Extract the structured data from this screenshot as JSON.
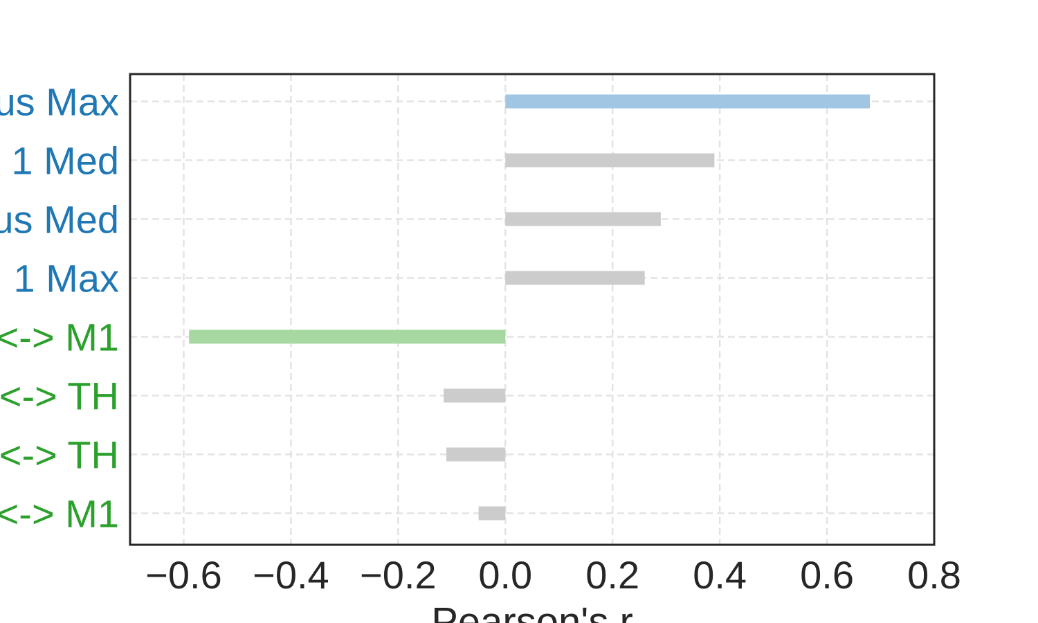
{
  "chart_data": {
    "type": "bar",
    "orientation": "horizontal",
    "title": "",
    "xlabel": "Pearson's r",
    "ylabel": "",
    "xlim": [
      -0.7,
      0.8
    ],
    "xticks": [
      -0.6,
      -0.4,
      -0.2,
      0.0,
      0.2,
      0.4,
      0.6,
      0.8
    ],
    "xtick_labels": [
      "−0.6",
      "−0.4",
      "−0.2",
      "0.0",
      "0.2",
      "0.4",
      "0.6",
      "0.8"
    ],
    "grid": true,
    "categories": [
      "us Max",
      "1 Med",
      "us Med",
      "1 Max",
      "<-> M1",
      "<-> TH",
      "<-> TH",
      "<-> M1"
    ],
    "category_colors": [
      "#1f77b4",
      "#1f77b4",
      "#1f77b4",
      "#1f77b4",
      "#2ca02c",
      "#2ca02c",
      "#2ca02c",
      "#2ca02c"
    ],
    "values": [
      0.68,
      0.39,
      0.29,
      0.26,
      -0.59,
      -0.115,
      -0.11,
      -0.05
    ],
    "bar_colors": [
      "#a1c6e3",
      "#cccccc",
      "#cccccc",
      "#cccccc",
      "#a8d8a1",
      "#cccccc",
      "#cccccc",
      "#cccccc"
    ]
  }
}
